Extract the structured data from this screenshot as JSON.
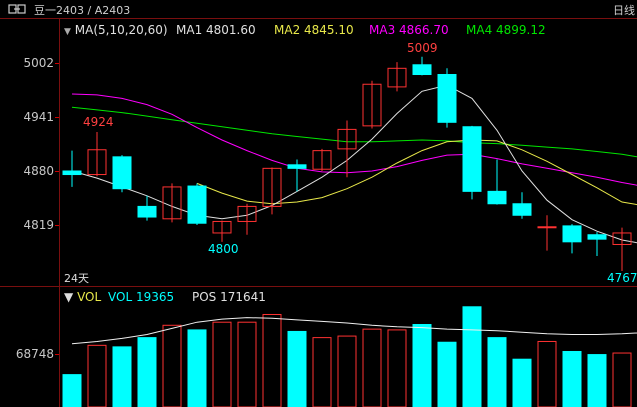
{
  "titlebar": {
    "icon": "link-icon",
    "title": "豆一2403 / A2403",
    "right_label": "日线"
  },
  "legend": {
    "ma_title": "MA(5,10,20,60)",
    "ma1": "MA1 4801.60",
    "ma2": "MA2 4845.10",
    "ma3": "MA3 4866.70",
    "ma4": "MA4 4899.12"
  },
  "vol_legend": {
    "title": "VOL",
    "vol": "VOL 19365",
    "pos": "POS 171641"
  },
  "price_axis": [
    "5002",
    "4941",
    "4880",
    "4819"
  ],
  "vol_axis": [
    "68748"
  ],
  "period_label": "24天",
  "annotations": {
    "high": "5009",
    "left_high": "4924",
    "low": "4800",
    "right_low": "4767"
  },
  "colors": {
    "up": "#ff3232",
    "down": "#00ffff",
    "ma1": "#e0e0e0",
    "ma2": "#e8e84a",
    "ma3": "#ff00ff",
    "ma4": "#00e600",
    "grid": "#7a0f0f"
  },
  "chart_data": {
    "type": "candlestick",
    "price_ticks": [
      5002,
      4941,
      4880,
      4819
    ],
    "vol_ticks": [
      68748
    ],
    "candles": [
      {
        "open": 4880,
        "close": 4876,
        "high": 4903,
        "low": 4862,
        "vol": 42000
      },
      {
        "open": 4876,
        "close": 4904,
        "high": 4924,
        "low": 4874,
        "vol": 80000
      },
      {
        "open": 4896,
        "close": 4860,
        "high": 4898,
        "low": 4856,
        "vol": 78000
      },
      {
        "open": 4840,
        "close": 4828,
        "high": 4852,
        "low": 4824,
        "vol": 90000
      },
      {
        "open": 4826,
        "close": 4862,
        "high": 4866,
        "low": 4822,
        "vol": 106000
      },
      {
        "open": 4863,
        "close": 4821,
        "high": 4866,
        "low": 4819,
        "vol": 100000
      },
      {
        "open": 4810,
        "close": 4823,
        "high": 4824,
        "low": 4800,
        "vol": 110000
      },
      {
        "open": 4823,
        "close": 4840,
        "high": 4843,
        "low": 4808,
        "vol": 110000
      },
      {
        "open": 4840,
        "close": 4883,
        "high": 4884,
        "low": 4831,
        "vol": 120000
      },
      {
        "open": 4887,
        "close": 4883,
        "high": 4893,
        "low": 4857,
        "vol": 98000
      },
      {
        "open": 4882,
        "close": 4903,
        "high": 4905,
        "low": 4880,
        "vol": 90000
      },
      {
        "open": 4905,
        "close": 4927,
        "high": 4937,
        "low": 4873,
        "vol": 92000
      },
      {
        "open": 4931,
        "close": 4978,
        "high": 4982,
        "low": 4928,
        "vol": 101000
      },
      {
        "open": 4975,
        "close": 4996,
        "high": 5003,
        "low": 4970,
        "vol": 100000
      },
      {
        "open": 5000,
        "close": 4989,
        "high": 5009,
        "low": 4988,
        "vol": 107000
      },
      {
        "open": 4989,
        "close": 4935,
        "high": 4996,
        "low": 4929,
        "vol": 84000
      },
      {
        "open": 4930,
        "close": 4857,
        "high": 4931,
        "low": 4848,
        "vol": 130000
      },
      {
        "open": 4857,
        "close": 4843,
        "high": 4893,
        "low": 4842,
        "vol": 90000
      },
      {
        "open": 4843,
        "close": 4830,
        "high": 4856,
        "low": 4826,
        "vol": 62000
      },
      {
        "open": 4817,
        "close": 4817,
        "high": 4830,
        "low": 4790,
        "vol": 85000
      },
      {
        "open": 4818,
        "close": 4800,
        "high": 4820,
        "low": 4787,
        "vol": 72000
      },
      {
        "open": 4808,
        "close": 4803,
        "high": 4811,
        "low": 4784,
        "vol": 68000
      },
      {
        "open": 4797,
        "close": 4810,
        "high": 4816,
        "low": 4767,
        "vol": 70000
      }
    ],
    "ma1": [
      4880,
      4872,
      4862,
      4852,
      4840,
      4830,
      4826,
      4830,
      4841,
      4857,
      4873,
      4892,
      4916,
      4945,
      4970,
      4977,
      4962,
      4926,
      4880,
      4847,
      4825,
      4812,
      4802
    ],
    "ma2": [
      null,
      null,
      null,
      null,
      null,
      4866,
      4855,
      4846,
      4843,
      4845,
      4850,
      4860,
      4873,
      4889,
      4903,
      4913,
      4915,
      4914,
      4904,
      4891,
      4876,
      4861,
      4845
    ],
    "ma3": [
      4967,
      4966,
      4962,
      4955,
      4944,
      4929,
      4915,
      4903,
      4892,
      4883,
      4879,
      4878,
      4880,
      4885,
      4892,
      4898,
      4899,
      4894,
      4888,
      4883,
      4878,
      4873,
      4867
    ],
    "ma4": [
      4952,
      4949,
      4946,
      4942,
      4938,
      4934,
      4930,
      4926,
      4922,
      4919,
      4916,
      4913,
      4913,
      4914,
      4915,
      4914,
      4912,
      4911,
      4909,
      4907,
      4905,
      4902,
      4899
    ],
    "vol_ma": [
      82000,
      85000,
      89000,
      94000,
      102000,
      110000,
      114000,
      116000,
      115000,
      113000,
      111000,
      109000,
      106000,
      104000,
      103000,
      101000,
      100000,
      99000,
      97000,
      95000,
      94000,
      94000,
      95000
    ],
    "series_names": [
      "MA1",
      "MA2",
      "MA3",
      "MA4"
    ]
  }
}
